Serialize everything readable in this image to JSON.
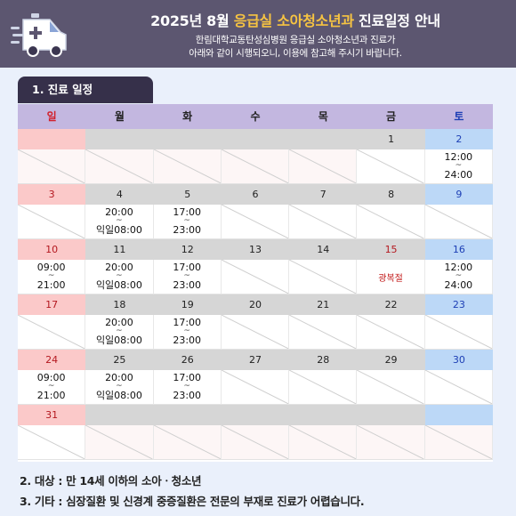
{
  "header": {
    "title_part1": "2025년 8월 ",
    "title_highlight": "응급실 소아청소년과",
    "title_part2": " 진료일정 안내",
    "subtitle_line1": "한림대학교동탄성심병원 응급실 소아청소년과 진료가",
    "subtitle_line2": "아래와 같이 시행되오니, 이용에 참고해 주시기 바랍니다.",
    "icon": "ambulance-icon"
  },
  "section1": {
    "label": "1. 진료 일정"
  },
  "colors": {
    "header_bg": "#5c5670",
    "highlight": "#f6c342",
    "sunday": "#d21f2a",
    "saturday": "#1d3fb5",
    "holiday": "#c21a1a"
  },
  "calendar": {
    "weekdays": [
      "일",
      "월",
      "화",
      "수",
      "목",
      "금",
      "토"
    ],
    "weeks": [
      [
        {
          "day": ""
        },
        {
          "day": ""
        },
        {
          "day": ""
        },
        {
          "day": ""
        },
        {
          "day": ""
        },
        {
          "day": "1"
        },
        {
          "day": "2",
          "open": "12:00",
          "close": "24:00"
        }
      ],
      [
        {
          "day": "3"
        },
        {
          "day": "4",
          "open": "20:00",
          "close": "익일08:00"
        },
        {
          "day": "5",
          "open": "17:00",
          "close": "23:00"
        },
        {
          "day": "6"
        },
        {
          "day": "7"
        },
        {
          "day": "8"
        },
        {
          "day": "9"
        }
      ],
      [
        {
          "day": "10",
          "open": "09:00",
          "close": "21:00"
        },
        {
          "day": "11",
          "open": "20:00",
          "close": "익일08:00"
        },
        {
          "day": "12",
          "open": "17:00",
          "close": "23:00"
        },
        {
          "day": "13"
        },
        {
          "day": "14"
        },
        {
          "day": "15",
          "holiday": "광복절"
        },
        {
          "day": "16",
          "open": "12:00",
          "close": "24:00"
        }
      ],
      [
        {
          "day": "17"
        },
        {
          "day": "18",
          "open": "20:00",
          "close": "익일08:00"
        },
        {
          "day": "19",
          "open": "17:00",
          "close": "23:00"
        },
        {
          "day": "20"
        },
        {
          "day": "21"
        },
        {
          "day": "22"
        },
        {
          "day": "23"
        }
      ],
      [
        {
          "day": "24",
          "open": "09:00",
          "close": "21:00"
        },
        {
          "day": "25",
          "open": "20:00",
          "close": "익일08:00"
        },
        {
          "day": "26",
          "open": "17:00",
          "close": "23:00"
        },
        {
          "day": "27"
        },
        {
          "day": "28"
        },
        {
          "day": "29"
        },
        {
          "day": "30"
        }
      ],
      [
        {
          "day": "31"
        },
        {
          "day": ""
        },
        {
          "day": ""
        },
        {
          "day": ""
        },
        {
          "day": ""
        },
        {
          "day": ""
        },
        {
          "day": ""
        }
      ]
    ]
  },
  "info": {
    "target": "2. 대상 : 만 14세 이하의 소아ㆍ청소년",
    "etc": "3. 기타 : 심장질환 및 신경계 중증질환은 전문의 부재로 진료가 어렵습니다."
  }
}
